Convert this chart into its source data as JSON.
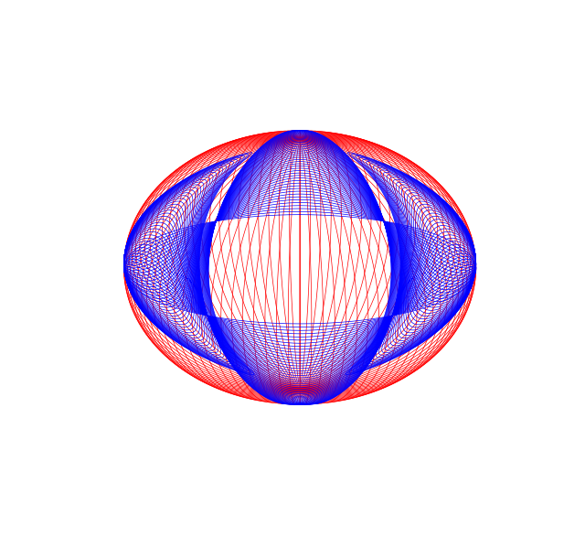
{
  "red_color": "#ff0000",
  "blue_color": "#0000ff",
  "background_color": "#ffffff",
  "linewidth": 0.5,
  "alpha": 1.0,
  "n_orbits_red": 50,
  "n_orbits_blue": 50,
  "n_points": 3000,
  "figsize": [
    6.4,
    5.98
  ],
  "dpi": 100,
  "elev": 18,
  "azim": -90
}
